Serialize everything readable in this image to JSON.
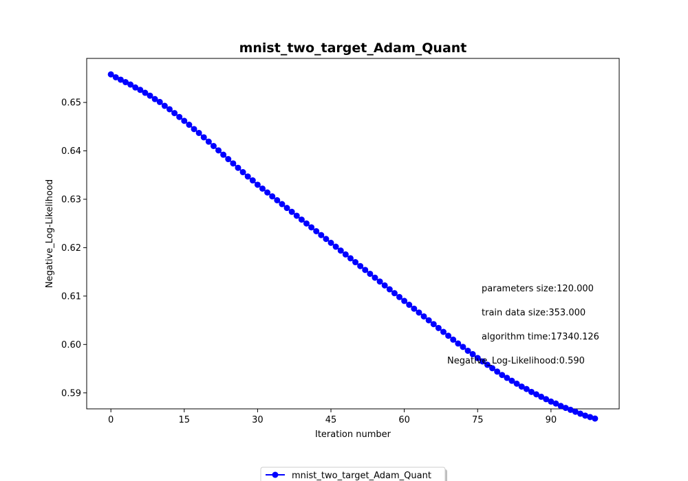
{
  "chart_data": {
    "type": "line",
    "title": "mnist_two_target_Adam_Quant",
    "xlabel": "Iteration number",
    "ylabel": "Negative_Log-Likelihood",
    "xlim": [
      -4.95,
      103.95
    ],
    "ylim": [
      0.5867,
      0.6591
    ],
    "xticks": [
      0,
      15,
      30,
      45,
      60,
      75,
      90
    ],
    "yticks": [
      0.59,
      0.6,
      0.61,
      0.62,
      0.63,
      0.64,
      0.65
    ],
    "ytick_labels": [
      "0.59",
      "0.60",
      "0.61",
      "0.62",
      "0.63",
      "0.64",
      "0.65"
    ],
    "grid": false,
    "legend_position": "bottom-center",
    "series": [
      {
        "name": "mnist_two_target_Adam_Quant",
        "color": "#0000ff",
        "marker": "circle",
        "x_start": 0,
        "x_step": 1,
        "values": [
          0.6558,
          0.6552,
          0.6547,
          0.6542,
          0.6537,
          0.6531,
          0.6526,
          0.652,
          0.6514,
          0.6507,
          0.6501,
          0.6493,
          0.6486,
          0.6478,
          0.647,
          0.6462,
          0.6454,
          0.6445,
          0.6437,
          0.6428,
          0.6419,
          0.641,
          0.6401,
          0.6392,
          0.6383,
          0.6374,
          0.6365,
          0.6356,
          0.6347,
          0.6339,
          0.633,
          0.6322,
          0.6314,
          0.6306,
          0.6298,
          0.629,
          0.6282,
          0.6274,
          0.6266,
          0.6258,
          0.625,
          0.6242,
          0.6234,
          0.6226,
          0.6218,
          0.621,
          0.6202,
          0.6194,
          0.6186,
          0.6178,
          0.617,
          0.6162,
          0.6154,
          0.6146,
          0.6138,
          0.613,
          0.6122,
          0.6114,
          0.6106,
          0.6098,
          0.609,
          0.6082,
          0.6074,
          0.6066,
          0.6058,
          0.605,
          0.6042,
          0.6034,
          0.6026,
          0.6018,
          0.601,
          0.6002,
          0.5995,
          0.5987,
          0.598,
          0.5972,
          0.5965,
          0.5958,
          0.5951,
          0.5944,
          0.5937,
          0.5931,
          0.5925,
          0.5919,
          0.5913,
          0.5908,
          0.5902,
          0.5897,
          0.5892,
          0.5887,
          0.5882,
          0.5878,
          0.5873,
          0.5869,
          0.5865,
          0.5861,
          0.5857,
          0.5853,
          0.585,
          0.5847
        ]
      }
    ],
    "annotations": [
      "parameters size:120.000",
      "train data size:353.000",
      "algorithm time:17340.126",
      "Negative_Log-Likelihood:0.590"
    ]
  }
}
